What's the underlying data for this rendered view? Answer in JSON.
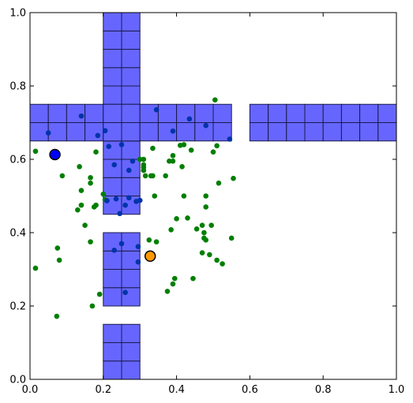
{
  "chart_data": {
    "type": "scatter",
    "title": "",
    "xlabel": "",
    "ylabel": "",
    "xlim": [
      0,
      1
    ],
    "ylim": [
      0,
      1
    ],
    "grid": false,
    "x_ticks": [
      "0.0",
      "0.2",
      "0.4",
      "0.6",
      "0.8",
      "1.0"
    ],
    "y_ticks": [
      "0.0",
      "0.2",
      "0.4",
      "0.6",
      "0.8",
      "1.0"
    ],
    "colors": {
      "obstacle_fill": "#6666ff",
      "obstacle_edge": "#1a1a4d",
      "green_point": "#007f00",
      "blue_point": "#0033aa",
      "start_marker": "#0000ff",
      "goal_marker": "#ff9900"
    },
    "obstacles": {
      "cell_size": 0.05,
      "blocks": [
        {
          "x0": 0.2,
          "x1": 0.3,
          "y0": 0.0,
          "y1": 0.15
        },
        {
          "x0": 0.2,
          "x1": 0.3,
          "y0": 0.2,
          "y1": 0.4
        },
        {
          "x0": 0.2,
          "x1": 0.3,
          "y0": 0.45,
          "y1": 1.0
        },
        {
          "x0": 0.0,
          "x1": 0.55,
          "y0": 0.65,
          "y1": 0.75
        },
        {
          "x0": 0.6,
          "x1": 1.0,
          "y0": 0.65,
          "y1": 0.75
        }
      ]
    },
    "series": [
      {
        "role": "samples-free",
        "points": [
          [
            0.015,
            0.622
          ],
          [
            0.088,
            0.555
          ],
          [
            0.135,
            0.58
          ],
          [
            0.14,
            0.515
          ],
          [
            0.165,
            0.535
          ],
          [
            0.165,
            0.55
          ],
          [
            0.13,
            0.462
          ],
          [
            0.14,
            0.475
          ],
          [
            0.15,
            0.42
          ],
          [
            0.175,
            0.47
          ],
          [
            0.18,
            0.475
          ],
          [
            0.2,
            0.505
          ],
          [
            0.205,
            0.49
          ],
          [
            0.18,
            0.62
          ],
          [
            0.015,
            0.303
          ],
          [
            0.075,
            0.358
          ],
          [
            0.08,
            0.325
          ],
          [
            0.165,
            0.375
          ],
          [
            0.19,
            0.232
          ],
          [
            0.17,
            0.2
          ],
          [
            0.073,
            0.172
          ],
          [
            0.31,
            0.57
          ],
          [
            0.31,
            0.578
          ],
          [
            0.315,
            0.555
          ],
          [
            0.33,
            0.555
          ],
          [
            0.34,
            0.5
          ],
          [
            0.335,
            0.63
          ],
          [
            0.31,
            0.6
          ],
          [
            0.325,
            0.38
          ],
          [
            0.345,
            0.375
          ],
          [
            0.38,
            0.595
          ],
          [
            0.39,
            0.61
          ],
          [
            0.39,
            0.595
          ],
          [
            0.375,
            0.24
          ],
          [
            0.39,
            0.26
          ],
          [
            0.395,
            0.275
          ],
          [
            0.385,
            0.408
          ],
          [
            0.4,
            0.438
          ],
          [
            0.41,
            0.638
          ],
          [
            0.42,
            0.64
          ],
          [
            0.415,
            0.58
          ],
          [
            0.42,
            0.5
          ],
          [
            0.43,
            0.44
          ],
          [
            0.44,
            0.625
          ],
          [
            0.445,
            0.275
          ],
          [
            0.455,
            0.41
          ],
          [
            0.47,
            0.42
          ],
          [
            0.475,
            0.4
          ],
          [
            0.475,
            0.385
          ],
          [
            0.47,
            0.345
          ],
          [
            0.48,
            0.5
          ],
          [
            0.48,
            0.47
          ],
          [
            0.48,
            0.38
          ],
          [
            0.49,
            0.34
          ],
          [
            0.495,
            0.42
          ],
          [
            0.5,
            0.62
          ],
          [
            0.505,
            0.762
          ],
          [
            0.51,
            0.637
          ],
          [
            0.515,
            0.535
          ],
          [
            0.51,
            0.325
          ],
          [
            0.525,
            0.315
          ],
          [
            0.55,
            0.385
          ],
          [
            0.555,
            0.548
          ],
          [
            0.3,
            0.6
          ],
          [
            0.335,
            0.555
          ],
          [
            0.37,
            0.555
          ],
          [
            0.31,
            0.57
          ],
          [
            0.31,
            0.585
          ]
        ]
      },
      {
        "role": "samples-in-obstacle",
        "points": [
          [
            0.05,
            0.672
          ],
          [
            0.14,
            0.718
          ],
          [
            0.185,
            0.665
          ],
          [
            0.205,
            0.678
          ],
          [
            0.215,
            0.635
          ],
          [
            0.23,
            0.585
          ],
          [
            0.235,
            0.492
          ],
          [
            0.245,
            0.452
          ],
          [
            0.26,
            0.475
          ],
          [
            0.27,
            0.495
          ],
          [
            0.27,
            0.57
          ],
          [
            0.28,
            0.595
          ],
          [
            0.3,
            0.488
          ],
          [
            0.29,
            0.485
          ],
          [
            0.23,
            0.352
          ],
          [
            0.25,
            0.37
          ],
          [
            0.26,
            0.237
          ],
          [
            0.295,
            0.362
          ],
          [
            0.295,
            0.32
          ],
          [
            0.345,
            0.735
          ],
          [
            0.39,
            0.677
          ],
          [
            0.435,
            0.71
          ],
          [
            0.48,
            0.692
          ],
          [
            0.545,
            0.655
          ],
          [
            0.25,
            0.64
          ],
          [
            0.21,
            0.487
          ]
        ]
      }
    ],
    "start": {
      "x": 0.068,
      "y": 0.613
    },
    "goal": {
      "x": 0.328,
      "y": 0.336
    }
  }
}
